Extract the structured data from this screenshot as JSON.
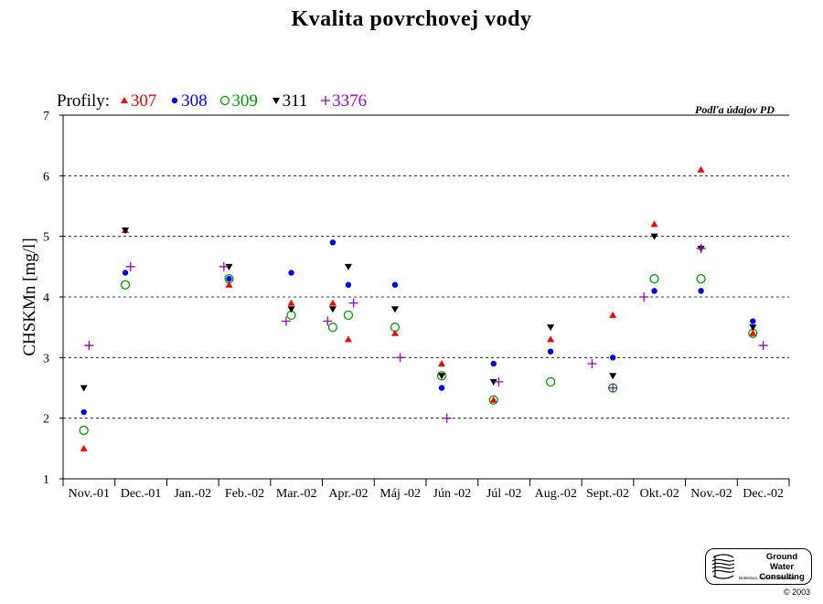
{
  "title": "Kvalita povrchovej vody",
  "source_note": "Podľa údajov PD",
  "legend": {
    "prefix": "Profily:",
    "items": [
      {
        "label": "307",
        "symbol": "triangle-up",
        "color": "#ff0000"
      },
      {
        "label": "308",
        "symbol": "circle-filled",
        "color": "#0000ff"
      },
      {
        "label": "309",
        "symbol": "circle-open",
        "color": "#009900"
      },
      {
        "label": "311",
        "symbol": "triangle-down",
        "color": "#000000"
      },
      {
        "label": "3376",
        "symbol": "plus",
        "color": "#9900cc"
      }
    ]
  },
  "logo": {
    "line1": "Ground Water",
    "line2": "Consulting",
    "line3": "Bratislava, SLOVAK REPUBLIC",
    "copyright": "© 2003"
  },
  "chart_data": {
    "type": "scatter",
    "title": "Kvalita povrchovej vody",
    "xlabel": "",
    "ylabel": "CHSKMn [mg/l]",
    "ylim": [
      1,
      7
    ],
    "yticks": [
      1,
      2,
      3,
      4,
      5,
      6,
      7
    ],
    "grid": "horizontal dashed at 2, 3, 4, 5, 6",
    "legend_position": "top-left",
    "categories": [
      "Nov.-01",
      "Dec.-01",
      "Jan.-02",
      "Feb.-02",
      "Mar.-02",
      "Apr.-02",
      "Máj -02",
      "Jún -02",
      "Júl -02",
      "Aug.-02",
      "Sept.-02",
      "Okt.-02",
      "Nov.-02",
      "Dec.-02"
    ],
    "series": [
      {
        "name": "307",
        "color": "#ff0000",
        "symbol": "triangle-up",
        "points": [
          [
            0.4,
            1.5
          ],
          [
            1.2,
            5.1
          ],
          [
            3.2,
            4.2
          ],
          [
            4.4,
            3.9
          ],
          [
            5.2,
            3.9
          ],
          [
            5.5,
            3.3
          ],
          [
            6.4,
            3.4
          ],
          [
            7.3,
            2.9
          ],
          [
            8.3,
            2.3
          ],
          [
            9.4,
            3.3
          ],
          [
            10.6,
            3.7
          ],
          [
            11.4,
            5.2
          ],
          [
            12.3,
            6.1
          ],
          [
            13.3,
            3.4
          ]
        ]
      },
      {
        "name": "308",
        "color": "#0000ff",
        "symbol": "circle-filled",
        "points": [
          [
            0.4,
            2.1
          ],
          [
            1.2,
            4.4
          ],
          [
            3.2,
            4.3
          ],
          [
            4.4,
            4.4
          ],
          [
            5.2,
            4.9
          ],
          [
            5.5,
            4.2
          ],
          [
            6.4,
            4.2
          ],
          [
            7.3,
            2.5
          ],
          [
            8.3,
            2.9
          ],
          [
            9.4,
            3.1
          ],
          [
            10.6,
            3.0
          ],
          [
            11.4,
            4.1
          ],
          [
            12.3,
            4.1
          ],
          [
            13.3,
            3.6
          ]
        ]
      },
      {
        "name": "309",
        "color": "#009900",
        "symbol": "circle-open",
        "points": [
          [
            0.4,
            1.8
          ],
          [
            1.2,
            4.2
          ],
          [
            3.2,
            4.3
          ],
          [
            4.4,
            3.7
          ],
          [
            5.2,
            3.5
          ],
          [
            5.5,
            3.7
          ],
          [
            6.4,
            3.5
          ],
          [
            7.3,
            2.7
          ],
          [
            8.3,
            2.3
          ],
          [
            9.4,
            2.6
          ],
          [
            10.6,
            2.5
          ],
          [
            11.4,
            4.3
          ],
          [
            12.3,
            4.3
          ],
          [
            13.3,
            3.4
          ]
        ]
      },
      {
        "name": "311",
        "color": "#000000",
        "symbol": "triangle-down",
        "points": [
          [
            0.4,
            2.5
          ],
          [
            1.2,
            5.1
          ],
          [
            3.2,
            4.5
          ],
          [
            4.4,
            3.8
          ],
          [
            5.2,
            3.8
          ],
          [
            5.5,
            4.5
          ],
          [
            6.4,
            3.8
          ],
          [
            7.3,
            2.7
          ],
          [
            8.3,
            2.6
          ],
          [
            9.4,
            3.5
          ],
          [
            10.6,
            2.7
          ],
          [
            11.4,
            5.0
          ],
          [
            12.3,
            4.8
          ],
          [
            13.3,
            3.5
          ]
        ]
      },
      {
        "name": "3376",
        "color": "#9900cc",
        "symbol": "plus",
        "points": [
          [
            0.5,
            3.2
          ],
          [
            1.3,
            4.5
          ],
          [
            3.1,
            4.5
          ],
          [
            4.3,
            3.6
          ],
          [
            5.1,
            3.6
          ],
          [
            5.6,
            3.9
          ],
          [
            6.5,
            3.0
          ],
          [
            7.4,
            2.0
          ],
          [
            8.4,
            2.6
          ],
          [
            10.2,
            2.9
          ],
          [
            10.6,
            2.5
          ],
          [
            11.2,
            4.0
          ],
          [
            12.3,
            4.8
          ],
          [
            13.5,
            3.2
          ]
        ]
      }
    ]
  }
}
